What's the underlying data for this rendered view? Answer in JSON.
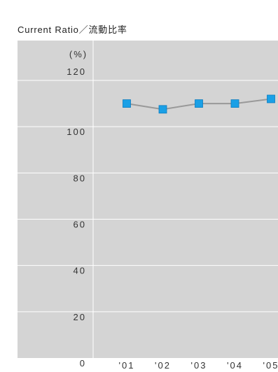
{
  "chart_data": {
    "type": "line",
    "title": "Current Ratio／流動比率",
    "unit_label": "(%)",
    "xlabel": "",
    "ylabel": "",
    "categories": [
      "'01",
      "'02",
      "'03",
      "'04",
      "'05"
    ],
    "series": [
      {
        "values": [
          110,
          107.5,
          110,
          110,
          112
        ]
      }
    ],
    "ylim": [
      0,
      120
    ],
    "yticks": [
      0,
      20,
      40,
      60,
      80,
      100,
      120
    ],
    "grid": true,
    "legend": "none",
    "colors": {
      "plot_background": "#d4d4d4",
      "gridline": "#ffffff",
      "line": "#999999",
      "marker": "#1aa0e6",
      "marker_edge": "#0a7cc0",
      "text": "#333333"
    }
  }
}
